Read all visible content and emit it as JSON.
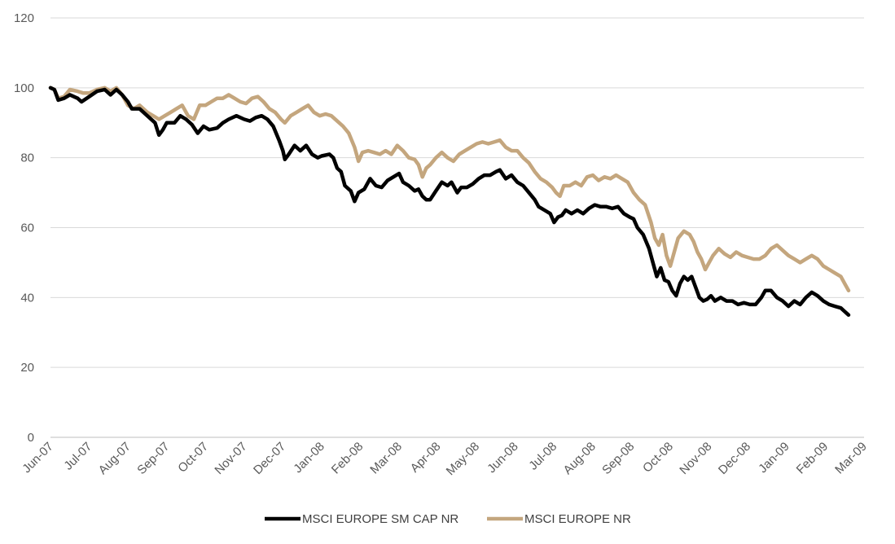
{
  "chart_data": {
    "type": "line",
    "title": "",
    "xlabel": "",
    "ylabel": "",
    "ylim": [
      0,
      120
    ],
    "yticks": [
      0,
      20,
      40,
      60,
      80,
      100,
      120
    ],
    "grid": "horizontal",
    "legend": "bottom-center",
    "categories": [
      "Jun-07",
      "Jul-07",
      "Aug-07",
      "Sep-07",
      "Oct-07",
      "Nov-07",
      "Dec-07",
      "Jan-08",
      "Feb-08",
      "Mar-08",
      "Apr-08",
      "May-08",
      "Jun-08",
      "Jul-08",
      "Aug-08",
      "Sep-08",
      "Oct-08",
      "Nov-08",
      "Dec-08",
      "Jan-09",
      "Feb-09",
      "Mar-09"
    ],
    "series": [
      {
        "name": "MSCI EUROPE SM CAP NR",
        "color": "#000000",
        "values": [
          [
            0,
            100
          ],
          [
            0.1,
            99.5
          ],
          [
            0.2,
            96.5
          ],
          [
            0.35,
            97
          ],
          [
            0.5,
            98
          ],
          [
            0.7,
            97
          ],
          [
            0.8,
            96
          ],
          [
            1.0,
            97.5
          ],
          [
            1.2,
            99
          ],
          [
            1.4,
            99.5
          ],
          [
            1.55,
            98
          ],
          [
            1.7,
            99.5
          ],
          [
            1.85,
            98
          ],
          [
            2.0,
            96
          ],
          [
            2.1,
            94
          ],
          [
            2.3,
            94
          ],
          [
            2.5,
            92
          ],
          [
            2.7,
            90
          ],
          [
            2.8,
            86.5
          ],
          [
            2.9,
            88
          ],
          [
            3.0,
            90
          ],
          [
            3.2,
            90
          ],
          [
            3.35,
            92
          ],
          [
            3.5,
            91
          ],
          [
            3.65,
            89.5
          ],
          [
            3.8,
            87
          ],
          [
            3.95,
            89
          ],
          [
            4.1,
            88
          ],
          [
            4.3,
            88.5
          ],
          [
            4.45,
            90
          ],
          [
            4.6,
            91
          ],
          [
            4.8,
            92
          ],
          [
            5.0,
            91
          ],
          [
            5.15,
            90.5
          ],
          [
            5.3,
            91.5
          ],
          [
            5.45,
            92
          ],
          [
            5.6,
            91
          ],
          [
            5.75,
            89
          ],
          [
            5.9,
            85
          ],
          [
            6.0,
            82
          ],
          [
            6.05,
            79.5
          ],
          [
            6.15,
            81
          ],
          [
            6.3,
            83.5
          ],
          [
            6.45,
            82
          ],
          [
            6.6,
            83.5
          ],
          [
            6.75,
            81
          ],
          [
            6.9,
            80
          ],
          [
            7.0,
            80.5
          ],
          [
            7.2,
            81
          ],
          [
            7.3,
            80
          ],
          [
            7.4,
            77
          ],
          [
            7.5,
            76
          ],
          [
            7.6,
            72
          ],
          [
            7.75,
            70.5
          ],
          [
            7.85,
            67.5
          ],
          [
            7.95,
            70
          ],
          [
            8.1,
            71
          ],
          [
            8.25,
            74
          ],
          [
            8.4,
            72
          ],
          [
            8.55,
            71.5
          ],
          [
            8.7,
            73.5
          ],
          [
            8.85,
            74.5
          ],
          [
            9.0,
            75.5
          ],
          [
            9.1,
            73
          ],
          [
            9.25,
            72
          ],
          [
            9.4,
            70.5
          ],
          [
            9.5,
            71
          ],
          [
            9.6,
            69
          ],
          [
            9.7,
            68
          ],
          [
            9.8,
            68
          ],
          [
            9.95,
            70.5
          ],
          [
            10.1,
            73
          ],
          [
            10.25,
            72
          ],
          [
            10.35,
            73
          ],
          [
            10.5,
            70
          ],
          [
            10.6,
            71.5
          ],
          [
            10.75,
            71.5
          ],
          [
            10.9,
            72.5
          ],
          [
            11.05,
            74
          ],
          [
            11.2,
            75
          ],
          [
            11.35,
            75
          ],
          [
            11.5,
            76
          ],
          [
            11.6,
            76.5
          ],
          [
            11.75,
            74
          ],
          [
            11.9,
            75
          ],
          [
            12.05,
            73
          ],
          [
            12.2,
            72
          ],
          [
            12.35,
            70
          ],
          [
            12.5,
            68
          ],
          [
            12.6,
            66
          ],
          [
            12.75,
            65
          ],
          [
            12.9,
            64
          ],
          [
            13.0,
            61.5
          ],
          [
            13.1,
            63
          ],
          [
            13.2,
            63.5
          ],
          [
            13.3,
            65
          ],
          [
            13.45,
            64
          ],
          [
            13.6,
            65
          ],
          [
            13.75,
            64
          ],
          [
            13.9,
            65.5
          ],
          [
            14.05,
            66.5
          ],
          [
            14.2,
            66
          ],
          [
            14.35,
            66
          ],
          [
            14.5,
            65.5
          ],
          [
            14.65,
            66
          ],
          [
            14.8,
            64
          ],
          [
            14.95,
            63
          ],
          [
            15.05,
            62.5
          ],
          [
            15.15,
            60
          ],
          [
            15.3,
            58
          ],
          [
            15.45,
            54
          ],
          [
            15.55,
            50
          ],
          [
            15.65,
            46
          ],
          [
            15.75,
            48.5
          ],
          [
            15.85,
            45
          ],
          [
            15.95,
            44.5
          ],
          [
            16.05,
            42
          ],
          [
            16.15,
            40.5
          ],
          [
            16.25,
            44
          ],
          [
            16.35,
            46
          ],
          [
            16.45,
            45
          ],
          [
            16.55,
            46
          ],
          [
            16.65,
            43
          ],
          [
            16.75,
            40
          ],
          [
            16.85,
            39
          ],
          [
            16.95,
            39.5
          ],
          [
            17.05,
            40.5
          ],
          [
            17.15,
            39
          ],
          [
            17.3,
            40
          ],
          [
            17.45,
            39
          ],
          [
            17.6,
            39
          ],
          [
            17.75,
            38
          ],
          [
            17.9,
            38.5
          ],
          [
            18.05,
            38
          ],
          [
            18.2,
            38
          ],
          [
            18.35,
            40
          ],
          [
            18.45,
            42
          ],
          [
            18.6,
            42
          ],
          [
            18.75,
            40
          ],
          [
            18.9,
            39
          ],
          [
            19.05,
            37.5
          ],
          [
            19.2,
            39
          ],
          [
            19.35,
            38
          ],
          [
            19.5,
            40
          ],
          [
            19.65,
            41.5
          ],
          [
            19.8,
            40.5
          ],
          [
            19.95,
            39
          ],
          [
            20.1,
            38
          ],
          [
            20.25,
            37.5
          ],
          [
            20.4,
            37
          ],
          [
            20.5,
            36
          ],
          [
            20.6,
            35
          ]
        ]
      },
      {
        "name": "MSCI EUROPE NR",
        "color": "#c4a67e",
        "values": [
          [
            0,
            100
          ],
          [
            0.1,
            99.5
          ],
          [
            0.2,
            97
          ],
          [
            0.35,
            97.5
          ],
          [
            0.5,
            99.5
          ],
          [
            0.7,
            99
          ],
          [
            0.85,
            98.5
          ],
          [
            1.0,
            98.5
          ],
          [
            1.2,
            99.5
          ],
          [
            1.4,
            100
          ],
          [
            1.55,
            99
          ],
          [
            1.7,
            100
          ],
          [
            1.85,
            98
          ],
          [
            2.0,
            95
          ],
          [
            2.15,
            94
          ],
          [
            2.3,
            95
          ],
          [
            2.5,
            93
          ],
          [
            2.65,
            92
          ],
          [
            2.8,
            91
          ],
          [
            2.95,
            92
          ],
          [
            3.1,
            93
          ],
          [
            3.25,
            94
          ],
          [
            3.4,
            95
          ],
          [
            3.55,
            92
          ],
          [
            3.7,
            91
          ],
          [
            3.85,
            95
          ],
          [
            4.0,
            95
          ],
          [
            4.15,
            96
          ],
          [
            4.3,
            97
          ],
          [
            4.45,
            97
          ],
          [
            4.6,
            98
          ],
          [
            4.75,
            97
          ],
          [
            4.9,
            96
          ],
          [
            5.05,
            95.5
          ],
          [
            5.2,
            97
          ],
          [
            5.35,
            97.5
          ],
          [
            5.5,
            96
          ],
          [
            5.65,
            94
          ],
          [
            5.8,
            93
          ],
          [
            5.95,
            91
          ],
          [
            6.05,
            90
          ],
          [
            6.2,
            92
          ],
          [
            6.35,
            93
          ],
          [
            6.5,
            94
          ],
          [
            6.65,
            95
          ],
          [
            6.8,
            93
          ],
          [
            6.95,
            92
          ],
          [
            7.1,
            92.5
          ],
          [
            7.25,
            92
          ],
          [
            7.4,
            90.5
          ],
          [
            7.55,
            89
          ],
          [
            7.7,
            87
          ],
          [
            7.85,
            83
          ],
          [
            7.95,
            79
          ],
          [
            8.05,
            81.5
          ],
          [
            8.2,
            82
          ],
          [
            8.35,
            81.5
          ],
          [
            8.5,
            81
          ],
          [
            8.65,
            82
          ],
          [
            8.8,
            81
          ],
          [
            8.95,
            83.5
          ],
          [
            9.1,
            82
          ],
          [
            9.25,
            80
          ],
          [
            9.4,
            79.5
          ],
          [
            9.5,
            78
          ],
          [
            9.6,
            74.5
          ],
          [
            9.7,
            77
          ],
          [
            9.8,
            78
          ],
          [
            9.95,
            80
          ],
          [
            10.1,
            81.5
          ],
          [
            10.25,
            80
          ],
          [
            10.4,
            79
          ],
          [
            10.55,
            81
          ],
          [
            10.7,
            82
          ],
          [
            10.85,
            83
          ],
          [
            11.0,
            84
          ],
          [
            11.15,
            84.5
          ],
          [
            11.3,
            84
          ],
          [
            11.45,
            84.5
          ],
          [
            11.6,
            85
          ],
          [
            11.75,
            83
          ],
          [
            11.9,
            82
          ],
          [
            12.05,
            82
          ],
          [
            12.2,
            80
          ],
          [
            12.35,
            78.5
          ],
          [
            12.5,
            76
          ],
          [
            12.65,
            74
          ],
          [
            12.8,
            73
          ],
          [
            12.95,
            71.5
          ],
          [
            13.05,
            70
          ],
          [
            13.15,
            69
          ],
          [
            13.25,
            72
          ],
          [
            13.4,
            72
          ],
          [
            13.55,
            73
          ],
          [
            13.7,
            72
          ],
          [
            13.85,
            74.5
          ],
          [
            14.0,
            75
          ],
          [
            14.15,
            73.5
          ],
          [
            14.3,
            74.5
          ],
          [
            14.45,
            74
          ],
          [
            14.6,
            75
          ],
          [
            14.75,
            74
          ],
          [
            14.9,
            73
          ],
          [
            15.05,
            70
          ],
          [
            15.2,
            68
          ],
          [
            15.35,
            66.5
          ],
          [
            15.5,
            61.5
          ],
          [
            15.6,
            57
          ],
          [
            15.7,
            55
          ],
          [
            15.8,
            58
          ],
          [
            15.9,
            52
          ],
          [
            16.0,
            49
          ],
          [
            16.1,
            53
          ],
          [
            16.2,
            57
          ],
          [
            16.35,
            59
          ],
          [
            16.5,
            58
          ],
          [
            16.6,
            56
          ],
          [
            16.7,
            53
          ],
          [
            16.8,
            51
          ],
          [
            16.9,
            48
          ],
          [
            17.0,
            50
          ],
          [
            17.1,
            52
          ],
          [
            17.25,
            54
          ],
          [
            17.4,
            52.5
          ],
          [
            17.55,
            51.5
          ],
          [
            17.7,
            53
          ],
          [
            17.85,
            52
          ],
          [
            18.0,
            51.5
          ],
          [
            18.15,
            51
          ],
          [
            18.3,
            51
          ],
          [
            18.45,
            52
          ],
          [
            18.6,
            54
          ],
          [
            18.75,
            55
          ],
          [
            18.9,
            53.5
          ],
          [
            19.05,
            52
          ],
          [
            19.2,
            51
          ],
          [
            19.35,
            50
          ],
          [
            19.5,
            51
          ],
          [
            19.65,
            52
          ],
          [
            19.8,
            51
          ],
          [
            19.95,
            49
          ],
          [
            20.1,
            48
          ],
          [
            20.25,
            47
          ],
          [
            20.4,
            46
          ],
          [
            20.5,
            44
          ],
          [
            20.6,
            42
          ]
        ]
      }
    ]
  }
}
